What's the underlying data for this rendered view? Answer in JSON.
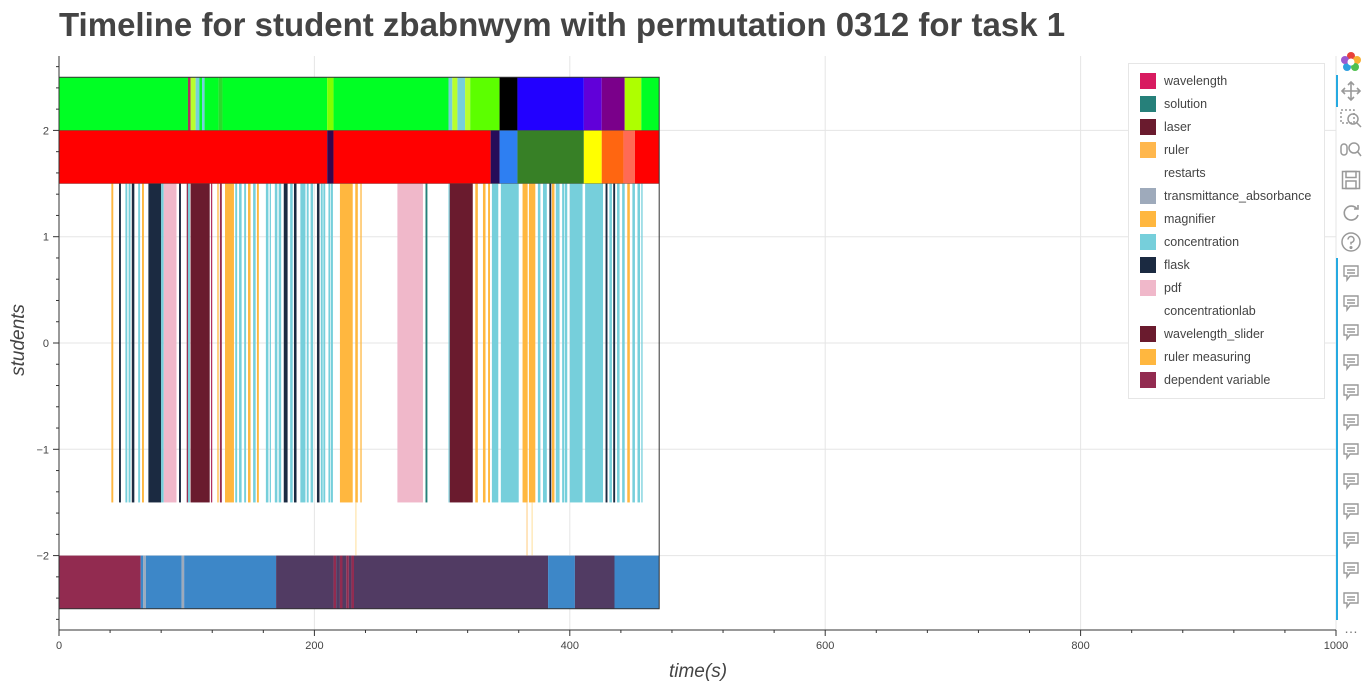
{
  "chart_data": {
    "type": "timeline",
    "title": "Timeline for student zbabnwym with permutation 0312 for task 1",
    "xlabel": "time(s)",
    "ylabel": "students",
    "xlim": [
      0,
      1000
    ],
    "ylim": [
      -2.7,
      2.7
    ],
    "x_ticks": [
      0,
      200,
      400,
      600,
      800,
      1000
    ],
    "y_ticks": [
      2,
      1,
      0,
      -1,
      -2
    ],
    "y_tick_labels": [
      "2",
      "1",
      "0",
      "−1",
      "−2"
    ],
    "grid": true,
    "legend_position": "top-right",
    "legend": [
      {
        "label": "wavelength",
        "color": "#d81b60"
      },
      {
        "label": "solution",
        "color": "#26807a"
      },
      {
        "label": "laser",
        "color": "#6a1b2e"
      },
      {
        "label": "ruler",
        "color": "#ffb74d"
      },
      {
        "label": "restarts",
        "color": "#ffffff"
      },
      {
        "label": "transmittance_absorbance",
        "color": "#9eaabb"
      },
      {
        "label": "magnifier",
        "color": "#ffb73f"
      },
      {
        "label": "concentration",
        "color": "#76cfdb"
      },
      {
        "label": "flask",
        "color": "#1b2a41"
      },
      {
        "label": "pdf",
        "color": "#f0b8ca"
      },
      {
        "label": "concentrationlab",
        "color": "#ffffff"
      },
      {
        "label": "wavelength_slider",
        "color": "#6a1b2e"
      },
      {
        "label": "ruler measuring",
        "color": "#ffb73f"
      },
      {
        "label": "dependent variable",
        "color": "#922b50"
      }
    ],
    "rows": [
      {
        "y0": 2.0,
        "y1": 2.5,
        "segments": [
          [
            0,
            101,
            "#00ff24"
          ],
          [
            101,
            103,
            "#b03060"
          ],
          [
            103,
            107,
            "#b7ff2e"
          ],
          [
            107,
            110,
            "#76cfdb"
          ],
          [
            110,
            112,
            "#00ff24"
          ],
          [
            112,
            114,
            "#76cfdb"
          ],
          [
            114,
            125,
            "#00ff24"
          ],
          [
            125,
            128,
            "#2bd92b"
          ],
          [
            128,
            210,
            "#00ff24"
          ],
          [
            210,
            215,
            "#7fff00"
          ],
          [
            215,
            305,
            "#00ff24"
          ],
          [
            305,
            308,
            "#76cfdb"
          ],
          [
            308,
            312,
            "#b7ff2e"
          ],
          [
            312,
            318,
            "#76cfdb"
          ],
          [
            318,
            322,
            "#b7ff2e"
          ],
          [
            322,
            345,
            "#5cff00"
          ],
          [
            345,
            359,
            "#000000"
          ],
          [
            359,
            411,
            "#2200ff"
          ],
          [
            411,
            425,
            "#6100d9"
          ],
          [
            425,
            443,
            "#7a008a"
          ],
          [
            443,
            456,
            "#aeff00"
          ],
          [
            456,
            470,
            "#00ff24"
          ]
        ]
      },
      {
        "y0": 1.5,
        "y1": 2.0,
        "segments": [
          [
            0,
            210,
            "#ff0000"
          ],
          [
            210,
            215,
            "#36064d"
          ],
          [
            215,
            338,
            "#ff0000"
          ],
          [
            338,
            345,
            "#260d59"
          ],
          [
            345,
            359,
            "#2e7ff2"
          ],
          [
            359,
            411,
            "#378026"
          ],
          [
            411,
            425,
            "#ffff00"
          ],
          [
            425,
            442,
            "#ff6611"
          ],
          [
            442,
            451,
            "#ff6a55"
          ],
          [
            451,
            470,
            "#ff0000"
          ]
        ]
      },
      {
        "y0": -1.5,
        "y1": 1.5,
        "segments": [
          [
            41,
            42.5,
            "#ffb73f"
          ],
          [
            47,
            48.5,
            "#1b2a41"
          ],
          [
            52,
            53.5,
            "#76cfdb"
          ],
          [
            54.5,
            56,
            "#76cfdb"
          ],
          [
            57,
            59,
            "#1b2a41"
          ],
          [
            62,
            63.5,
            "#76cfdb"
          ],
          [
            65,
            66.5,
            "#ffb73f"
          ],
          [
            70,
            80,
            "#1b2a41"
          ],
          [
            80,
            82,
            "#76cfdb"
          ],
          [
            82,
            92,
            "#f0b8ca"
          ],
          [
            94,
            95.5,
            "#1b2a41"
          ],
          [
            100,
            101,
            "#922b50"
          ],
          [
            101,
            102.5,
            "#76cfdb"
          ],
          [
            103,
            118,
            "#6a1b2e"
          ],
          [
            119,
            120,
            "#b03060"
          ],
          [
            124,
            125,
            "#ffb73f"
          ],
          [
            126,
            127.5,
            "#922b50"
          ],
          [
            130,
            137,
            "#ffb73f"
          ],
          [
            138,
            139.5,
            "#76cfdb"
          ],
          [
            141,
            143,
            "#76cfdb"
          ],
          [
            145,
            146.5,
            "#76cfdb"
          ],
          [
            148,
            150,
            "#ffb73f"
          ],
          [
            152,
            154,
            "#76cfdb"
          ],
          [
            155,
            156.5,
            "#ffb73f"
          ],
          [
            162,
            164,
            "#76cfdb"
          ],
          [
            165,
            166,
            "#76cfdb"
          ],
          [
            169,
            171,
            "#76cfdb"
          ],
          [
            172,
            174,
            "#76cfdb"
          ],
          [
            176,
            179,
            "#1b2a41"
          ],
          [
            181,
            183,
            "#76cfdb"
          ],
          [
            184,
            186,
            "#1b2a41"
          ],
          [
            189,
            193,
            "#76cfdb"
          ],
          [
            194,
            195.5,
            "#76cfdb"
          ],
          [
            197,
            199,
            "#76cfdb"
          ],
          [
            202,
            204,
            "#1b2a41"
          ],
          [
            205,
            206.5,
            "#76cfdb"
          ],
          [
            207,
            208.5,
            "#76cfdb"
          ],
          [
            211,
            212.5,
            "#76cfdb"
          ],
          [
            213,
            214.5,
            "#76cfdb"
          ],
          [
            220,
            230,
            "#ffb73f"
          ],
          [
            232,
            234,
            "#ffb73f"
          ],
          [
            236,
            237,
            "#ffb73f"
          ],
          [
            265,
            285,
            "#f0b8ca"
          ],
          [
            287,
            288.5,
            "#26807a"
          ],
          [
            305,
            306,
            "#76cfdb"
          ],
          [
            306,
            324,
            "#6a1b2e"
          ],
          [
            326,
            328,
            "#ffb73f"
          ],
          [
            332,
            334,
            "#ffb73f"
          ],
          [
            336,
            337.5,
            "#ffb73f"
          ],
          [
            339,
            344,
            "#76cfdb"
          ],
          [
            346,
            360,
            "#76cfdb"
          ],
          [
            363,
            367,
            "#ffb73f"
          ],
          [
            368,
            373,
            "#ffb73f"
          ],
          [
            375,
            377,
            "#76cfdb"
          ],
          [
            379,
            382,
            "#76cfdb"
          ],
          [
            384,
            385.5,
            "#1b2a41"
          ],
          [
            386,
            388,
            "#ffb73f"
          ],
          [
            389,
            392,
            "#76cfdb"
          ],
          [
            394,
            395.5,
            "#76cfdb"
          ],
          [
            396,
            398,
            "#76cfdb"
          ],
          [
            400,
            410,
            "#76cfdb"
          ],
          [
            412,
            426,
            "#76cfdb"
          ],
          [
            428,
            429.5,
            "#1b2a41"
          ],
          [
            431,
            433,
            "#76cfdb"
          ],
          [
            434,
            435.5,
            "#1b2a41"
          ],
          [
            437,
            439,
            "#76cfdb"
          ],
          [
            441,
            443,
            "#76cfdb"
          ],
          [
            445,
            447,
            "#ffb73f"
          ],
          [
            449,
            451,
            "#76cfdb"
          ],
          [
            453,
            455,
            "#76cfdb"
          ],
          [
            456,
            457,
            "#76cfdb"
          ]
        ]
      },
      {
        "y0": -2.0,
        "y1": -1.5,
        "segments": [
          [
            232,
            233,
            "#ffe6b0"
          ],
          [
            366,
            367,
            "#ffd699"
          ],
          [
            370,
            371,
            "#ffe6b0"
          ]
        ]
      },
      {
        "y0": -2.5,
        "y1": -2.0,
        "segments": [
          [
            0,
            64,
            "#922b50"
          ],
          [
            64,
            66,
            "#3d87c8"
          ],
          [
            66,
            68,
            "#9eaabb"
          ],
          [
            68,
            96,
            "#3d87c8"
          ],
          [
            96,
            98,
            "#9eaabb"
          ],
          [
            98,
            170,
            "#3d87c8"
          ],
          [
            170,
            215,
            "#513b63"
          ],
          [
            215,
            217,
            "#922b50"
          ],
          [
            217,
            220,
            "#513b63"
          ],
          [
            220,
            222,
            "#922b50"
          ],
          [
            222,
            225,
            "#513b63"
          ],
          [
            225,
            227,
            "#922b50"
          ],
          [
            227,
            229,
            "#513b63"
          ],
          [
            229,
            231,
            "#922b50"
          ],
          [
            231,
            383,
            "#513b63"
          ],
          [
            383,
            404,
            "#3d87c8"
          ],
          [
            404,
            435,
            "#513b63"
          ],
          [
            435,
            470,
            "#3d87c8"
          ]
        ]
      }
    ],
    "frame": {
      "x0": 0,
      "x1": 470,
      "y0": -2.5,
      "y1": 2.5
    }
  },
  "toolbar": {
    "logo_colors": [
      "#e8413a",
      "#f7b032",
      "#4fc04f",
      "#2f9fe0",
      "#9b59d0"
    ],
    "more": "…"
  }
}
